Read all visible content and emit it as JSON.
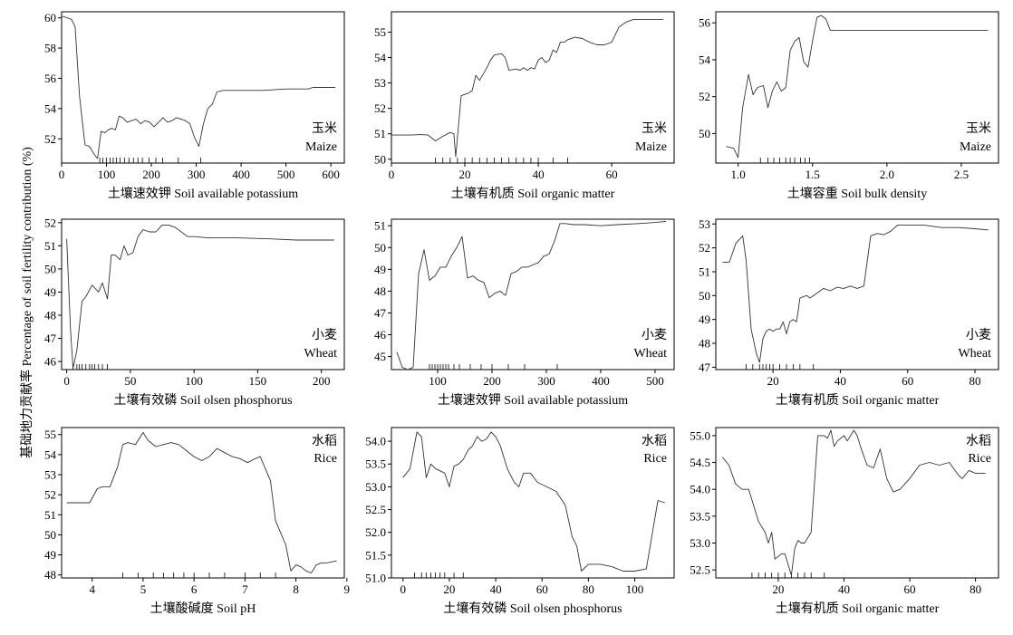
{
  "ylabel": "基础地力贡献率 Percentage of soil fertility contribution (%)",
  "chart_data": [
    {
      "type": "line",
      "label_cn": "玉米",
      "label_en": "Maize",
      "xlabel": "土壤速效钾 Soil available potassium",
      "xlim": [
        0,
        630
      ],
      "ylim": [
        50.4,
        60.4
      ],
      "xticks": [
        0,
        100,
        200,
        300,
        400,
        500,
        600
      ],
      "yticks": [
        52,
        54,
        56,
        58,
        60
      ],
      "x": [
        2,
        22,
        30,
        40,
        52,
        62,
        72,
        80,
        88,
        96,
        104,
        112,
        120,
        128,
        136,
        146,
        156,
        166,
        176,
        186,
        196,
        206,
        216,
        226,
        236,
        246,
        256,
        266,
        276,
        286,
        296,
        306,
        316,
        326,
        336,
        346,
        360,
        400,
        450,
        500,
        550,
        560,
        580,
        610
      ],
      "y": [
        60.1,
        59.9,
        59.4,
        54.8,
        51.6,
        51.5,
        51.0,
        50.7,
        52.5,
        52.4,
        52.6,
        52.7,
        52.6,
        53.5,
        53.4,
        53.1,
        53.2,
        53.3,
        53.0,
        53.2,
        53.1,
        52.8,
        53.1,
        53.4,
        53.1,
        53.2,
        53.4,
        53.3,
        53.2,
        53.0,
        52.1,
        51.5,
        53.0,
        54.0,
        54.3,
        55.1,
        55.2,
        55.2,
        55.2,
        55.3,
        55.3,
        55.4,
        55.4,
        55.4
      ],
      "rug": [
        85,
        92,
        100,
        108,
        115,
        122,
        130,
        140,
        150,
        160,
        170,
        180,
        195,
        210,
        225,
        260,
        310
      ]
    },
    {
      "type": "line",
      "label_cn": "玉米",
      "label_en": "Maize",
      "xlabel": "土壤有机质 Soil organic matter",
      "xlim": [
        0,
        77
      ],
      "ylim": [
        49.85,
        55.8
      ],
      "xticks": [
        0,
        20,
        40,
        60
      ],
      "yticks": [
        50,
        51,
        52,
        53,
        54,
        55
      ],
      "x": [
        0,
        5,
        8,
        10,
        12,
        14,
        16,
        17,
        17.5,
        19,
        21,
        22,
        23,
        24,
        26,
        27,
        28,
        30,
        31,
        32,
        34,
        35,
        36,
        37,
        38,
        39,
        40,
        41,
        42,
        43,
        44,
        45,
        46,
        47,
        48,
        50,
        52,
        54,
        56,
        58,
        60,
        62,
        64,
        66,
        68,
        70,
        74
      ],
      "y": [
        50.95,
        50.95,
        50.97,
        50.95,
        50.72,
        50.9,
        51.05,
        51.0,
        50.1,
        52.5,
        52.6,
        52.7,
        53.3,
        53.1,
        53.6,
        53.9,
        54.1,
        54.15,
        54.0,
        53.5,
        53.55,
        53.5,
        53.6,
        53.5,
        53.6,
        53.55,
        53.9,
        54.0,
        53.8,
        53.9,
        54.3,
        54.2,
        54.6,
        54.6,
        54.7,
        54.8,
        54.75,
        54.6,
        54.5,
        54.5,
        54.6,
        55.2,
        55.4,
        55.5,
        55.5,
        55.5,
        55.5
      ],
      "rug": [
        12,
        14,
        16,
        18,
        20,
        22,
        24,
        26,
        28,
        30,
        32,
        34,
        36,
        38,
        40,
        44,
        48
      ]
    },
    {
      "type": "line",
      "label_cn": "玉米",
      "label_en": "Maize",
      "xlabel": "土壤容重 Soil bulk density",
      "xlim": [
        0.85,
        2.75
      ],
      "ylim": [
        48.4,
        56.6
      ],
      "xticks": [
        1.0,
        1.5,
        2.0,
        2.5
      ],
      "yticks": [
        50,
        52,
        54,
        56
      ],
      "x": [
        0.92,
        0.97,
        1.0,
        1.03,
        1.07,
        1.1,
        1.13,
        1.17,
        1.2,
        1.23,
        1.26,
        1.29,
        1.32,
        1.35,
        1.38,
        1.41,
        1.44,
        1.47,
        1.5,
        1.53,
        1.56,
        1.59,
        1.62,
        1.65,
        1.68,
        1.72,
        1.8,
        2.0,
        2.5,
        2.68
      ],
      "y": [
        49.3,
        49.2,
        48.7,
        51.4,
        53.2,
        52.1,
        52.5,
        52.6,
        51.4,
        52.3,
        52.8,
        52.3,
        52.5,
        54.5,
        55.0,
        55.2,
        53.9,
        53.6,
        55.0,
        56.3,
        56.4,
        56.2,
        55.6,
        55.6,
        55.6,
        55.6,
        55.6,
        55.6,
        55.6,
        55.6
      ],
      "rug": [
        1.15,
        1.2,
        1.24,
        1.28,
        1.32,
        1.35,
        1.38,
        1.42,
        1.45,
        1.48
      ]
    },
    {
      "type": "line",
      "label_cn": "小麦",
      "label_en": "Wheat",
      "xlabel": "土壤有效磷 Soil olsen phosphorus",
      "xlim": [
        -4,
        218
      ],
      "ylim": [
        45.65,
        52.15
      ],
      "xticks": [
        0,
        50,
        100,
        150,
        200
      ],
      "yticks": [
        46,
        47,
        48,
        49,
        50,
        51,
        52
      ],
      "x": [
        0,
        3,
        5,
        8,
        12,
        15,
        20,
        25,
        28,
        32,
        35,
        38,
        42,
        45,
        48,
        52,
        56,
        60,
        65,
        70,
        75,
        80,
        85,
        90,
        95,
        100,
        110,
        130,
        160,
        180,
        210
      ],
      "y": [
        51.3,
        47.4,
        45.7,
        46.5,
        48.6,
        48.8,
        49.3,
        49.0,
        49.4,
        48.7,
        50.6,
        50.6,
        50.4,
        51.0,
        50.6,
        50.7,
        51.4,
        51.7,
        51.6,
        51.6,
        51.9,
        51.9,
        51.8,
        51.6,
        51.4,
        51.4,
        51.35,
        51.35,
        51.3,
        51.25,
        51.25
      ],
      "rug": [
        5,
        8,
        10,
        12,
        15,
        18,
        20,
        22,
        25,
        28,
        32
      ]
    },
    {
      "type": "line",
      "label_cn": "小麦",
      "label_en": "Wheat",
      "xlabel": "土壤速效钾 Soil available potassium",
      "xlim": [
        15,
        535
      ],
      "ylim": [
        44.4,
        51.3
      ],
      "xticks": [
        100,
        200,
        300,
        400,
        500
      ],
      "yticks": [
        45,
        46,
        47,
        48,
        49,
        50,
        51
      ],
      "x": [
        25,
        35,
        45,
        55,
        65,
        75,
        85,
        95,
        105,
        115,
        125,
        135,
        145,
        155,
        165,
        175,
        185,
        195,
        205,
        215,
        225,
        235,
        245,
        255,
        265,
        275,
        285,
        295,
        305,
        315,
        325,
        335,
        350,
        370,
        400,
        430,
        470,
        500,
        520
      ],
      "y": [
        45.2,
        44.5,
        44.4,
        44.5,
        48.8,
        49.9,
        48.5,
        48.7,
        49.1,
        49.1,
        49.6,
        50.0,
        50.5,
        48.6,
        48.7,
        48.5,
        48.4,
        47.7,
        47.9,
        48.0,
        47.8,
        48.8,
        48.9,
        49.1,
        49.1,
        49.2,
        49.3,
        49.6,
        49.7,
        50.3,
        51.1,
        51.1,
        51.05,
        51.05,
        51.0,
        51.05,
        51.1,
        51.15,
        51.2
      ],
      "rug": [
        85,
        90,
        95,
        100,
        105,
        110,
        115,
        120,
        130,
        140,
        160,
        180,
        200,
        230,
        260,
        320
      ]
    },
    {
      "type": "line",
      "label_cn": "小麦",
      "label_en": "Wheat",
      "xlabel": "土壤有机质 Soil organic matter",
      "xlim": [
        3,
        87
      ],
      "ylim": [
        46.9,
        53.2
      ],
      "xticks": [
        20,
        40,
        60,
        80
      ],
      "yticks": [
        47,
        48,
        49,
        50,
        51,
        52,
        53
      ],
      "x": [
        5,
        7,
        9,
        11,
        12,
        13.5,
        15,
        16,
        17,
        18,
        19,
        20,
        21,
        22,
        23,
        24,
        25,
        26,
        27,
        28,
        30,
        31,
        33,
        35,
        37,
        39,
        41,
        43,
        45,
        47,
        49,
        51,
        53,
        55,
        57,
        60,
        65,
        70,
        75,
        80,
        84
      ],
      "y": [
        51.4,
        51.4,
        52.2,
        52.5,
        51.5,
        48.6,
        47.6,
        47.2,
        48.2,
        48.5,
        48.6,
        48.5,
        48.6,
        48.6,
        48.9,
        48.4,
        48.9,
        49.0,
        48.9,
        49.9,
        50.0,
        49.9,
        50.1,
        50.3,
        50.2,
        50.35,
        50.3,
        50.4,
        50.3,
        50.4,
        52.5,
        52.6,
        52.55,
        52.7,
        52.95,
        52.95,
        52.95,
        52.85,
        52.85,
        52.8,
        52.75
      ],
      "rug": [
        12,
        14,
        16,
        17,
        18,
        19,
        20,
        22,
        24,
        26,
        28,
        32
      ]
    },
    {
      "type": "line",
      "label_cn": "水稻",
      "label_en": "Rice",
      "xlabel": "土壤酸碱度 Soil pH",
      "xlim": [
        3.4,
        8.95
      ],
      "ylim": [
        47.85,
        55.35
      ],
      "xticks": [
        4,
        5,
        6,
        7,
        8,
        9
      ],
      "yticks": [
        48,
        49,
        50,
        51,
        52,
        53,
        54,
        55
      ],
      "x": [
        3.5,
        3.7,
        3.95,
        4.1,
        4.2,
        4.35,
        4.5,
        4.6,
        4.7,
        4.85,
        5.0,
        5.1,
        5.25,
        5.4,
        5.55,
        5.7,
        5.85,
        6.0,
        6.15,
        6.3,
        6.45,
        6.6,
        6.75,
        6.9,
        7.05,
        7.2,
        7.3,
        7.4,
        7.5,
        7.6,
        7.7,
        7.8,
        7.9,
        8.0,
        8.1,
        8.2,
        8.3,
        8.4,
        8.5,
        8.6,
        8.8
      ],
      "y": [
        51.6,
        51.6,
        51.6,
        52.3,
        52.4,
        52.4,
        53.4,
        54.5,
        54.6,
        54.5,
        55.1,
        54.7,
        54.4,
        54.5,
        54.6,
        54.5,
        54.2,
        53.9,
        53.7,
        53.9,
        54.3,
        54.1,
        53.9,
        53.8,
        53.6,
        53.8,
        53.9,
        53.3,
        52.7,
        50.7,
        50.1,
        49.5,
        48.2,
        48.5,
        48.4,
        48.2,
        48.1,
        48.5,
        48.6,
        48.6,
        48.7
      ],
      "rug": [
        4.6,
        4.9,
        5.2,
        5.4,
        5.6,
        5.8,
        6.0,
        6.3,
        6.6,
        7.0,
        7.3,
        7.6
      ]
    },
    {
      "type": "line",
      "label_cn": "水稻",
      "label_en": "Rice",
      "xlabel": "土壤有效磷 Soil olsen phosphorus",
      "xlim": [
        -5,
        117
      ],
      "ylim": [
        51.0,
        54.3
      ],
      "xticks": [
        0,
        20,
        40,
        60,
        80,
        100
      ],
      "yticks": [
        51.0,
        51.5,
        52.0,
        52.5,
        53.0,
        53.5,
        54.0
      ],
      "x": [
        0,
        3,
        6,
        8,
        10,
        12,
        14,
        16,
        18,
        20,
        22,
        24,
        26,
        28,
        30,
        32,
        34,
        36,
        38,
        40,
        42,
        45,
        48,
        50,
        52,
        55,
        58,
        62,
        66,
        70,
        73,
        75,
        77,
        80,
        85,
        90,
        95,
        100,
        105,
        110,
        113
      ],
      "y": [
        53.2,
        53.4,
        54.2,
        54.1,
        53.2,
        53.5,
        53.4,
        53.35,
        53.3,
        53.0,
        53.45,
        53.5,
        53.6,
        53.8,
        53.9,
        54.1,
        54.0,
        54.05,
        54.2,
        54.1,
        53.9,
        53.4,
        53.1,
        53.0,
        53.3,
        53.3,
        53.1,
        53.0,
        52.9,
        52.6,
        51.9,
        51.7,
        51.15,
        51.3,
        51.3,
        51.25,
        51.15,
        51.15,
        51.2,
        52.7,
        52.65
      ],
      "rug": [
        5,
        8,
        10,
        12,
        14,
        16,
        18,
        22,
        26
      ]
    },
    {
      "type": "line",
      "label_cn": "水稻",
      "label_en": "Rice",
      "xlabel": "土壤有机质 Soil organic matter",
      "xlim": [
        1,
        87
      ],
      "ylim": [
        52.35,
        55.15
      ],
      "xticks": [
        20,
        40,
        60,
        80
      ],
      "yticks": [
        52.5,
        53.0,
        53.5,
        54.0,
        54.5,
        55.0
      ],
      "x": [
        3,
        5,
        7,
        9,
        11,
        12,
        14,
        15,
        16,
        17,
        18,
        19,
        20,
        21,
        22,
        23,
        24,
        25,
        26,
        27,
        28,
        30,
        32,
        34,
        35,
        36,
        37,
        38,
        40,
        41,
        42,
        43,
        44,
        45,
        47,
        49,
        51,
        53,
        55,
        57,
        60,
        63,
        66,
        69,
        72,
        75,
        76,
        78,
        80,
        83
      ],
      "y": [
        54.6,
        54.45,
        54.1,
        54.0,
        54.0,
        53.8,
        53.4,
        53.3,
        53.2,
        53.0,
        53.2,
        52.7,
        52.75,
        52.8,
        52.8,
        52.6,
        52.4,
        52.9,
        53.05,
        53.0,
        53.0,
        53.2,
        55.0,
        55.0,
        54.95,
        55.1,
        54.8,
        54.9,
        55.0,
        54.9,
        55.0,
        55.1,
        55.0,
        54.8,
        54.45,
        54.4,
        54.75,
        54.2,
        53.95,
        54.0,
        54.2,
        54.45,
        54.5,
        54.45,
        54.5,
        54.25,
        54.2,
        54.35,
        54.3,
        54.3
      ],
      "rug": [
        12,
        14,
        16,
        18,
        20,
        22,
        24,
        26,
        28,
        30,
        34
      ]
    }
  ]
}
